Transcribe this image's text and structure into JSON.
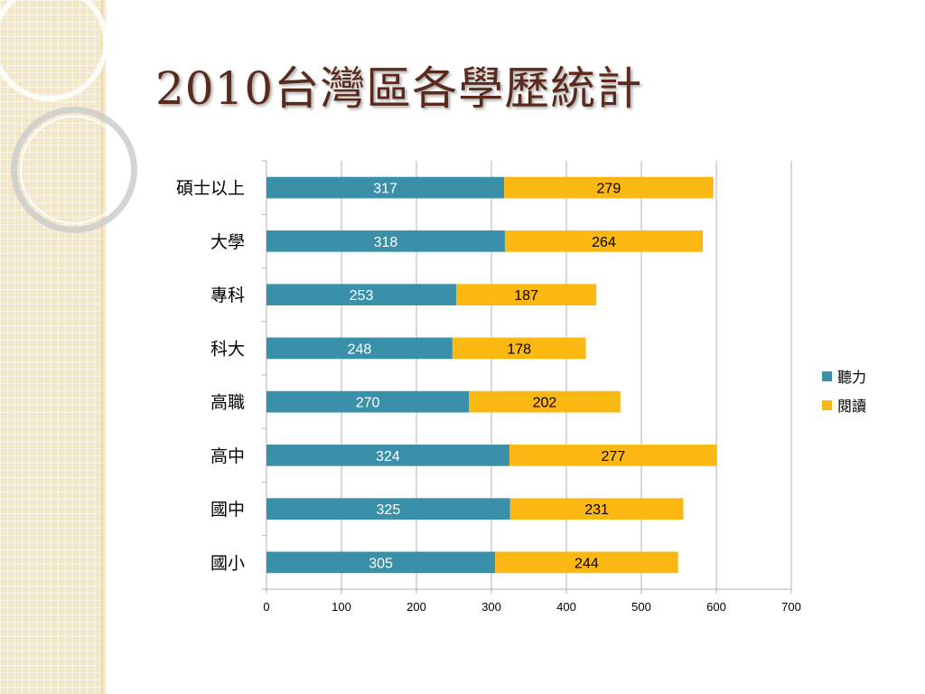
{
  "title": "2010台灣區各學歷統計",
  "colors": {
    "listening": "#3a90a8",
    "reading": "#fbb813",
    "grid": "#b3b3b3"
  },
  "legend": {
    "items": [
      "聽力",
      "閱讀"
    ]
  },
  "chart_data": {
    "type": "bar",
    "orientation": "horizontal",
    "stacked": true,
    "title": "2010台灣區各學歷統計",
    "categories": [
      "碩士以上",
      "大學",
      "專科",
      "科大",
      "高職",
      "高中",
      "國中",
      "國小"
    ],
    "series": [
      {
        "name": "聽力",
        "values": [
          317,
          318,
          253,
          248,
          270,
          324,
          325,
          305
        ]
      },
      {
        "name": "閱讀",
        "values": [
          279,
          264,
          187,
          178,
          202,
          277,
          231,
          244
        ]
      }
    ],
    "xlim": [
      0,
      700
    ],
    "xticks": [
      0,
      100,
      200,
      300,
      400,
      500,
      600,
      700
    ],
    "grid": true,
    "legend_position": "right"
  }
}
